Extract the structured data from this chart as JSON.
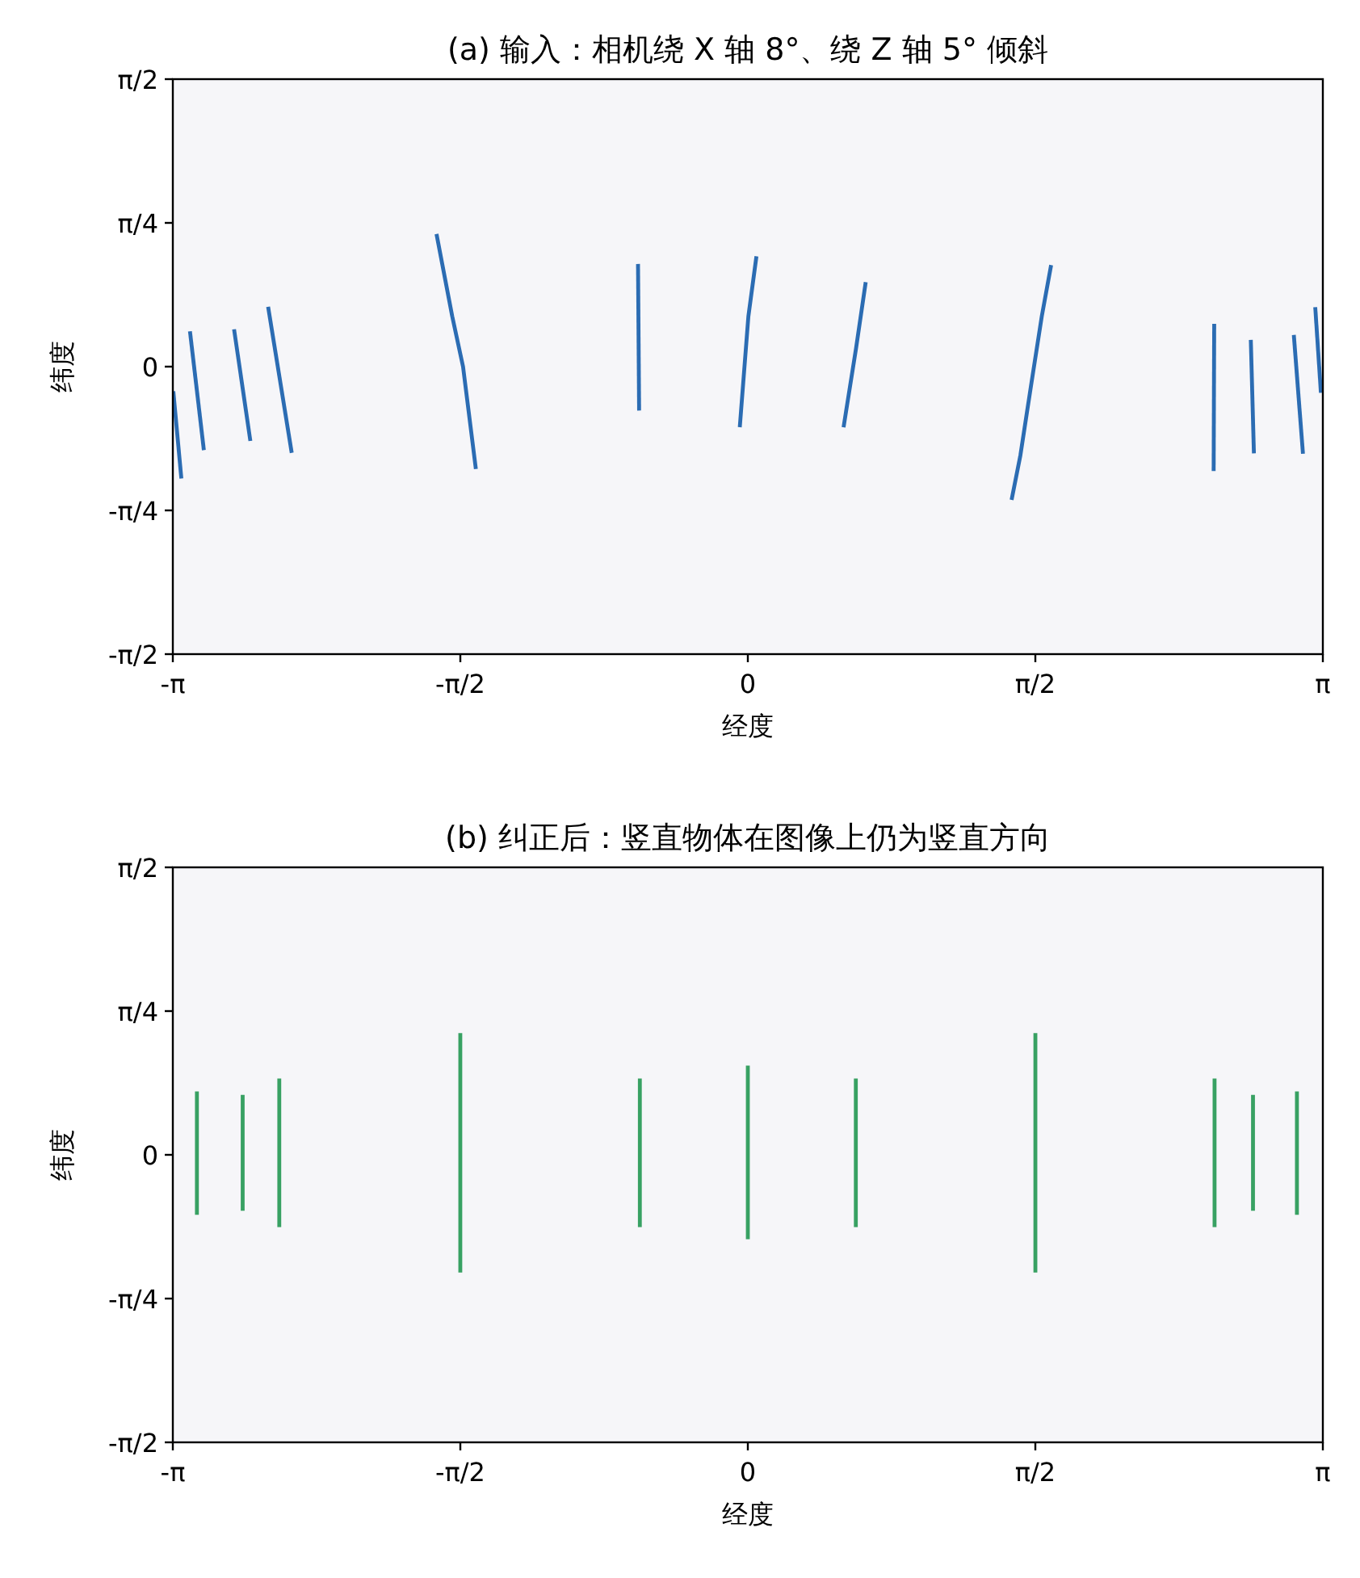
{
  "chart_data": [
    {
      "type": "line",
      "title": "(a) 输入：相机绕 X 轴 8°、绕 Z 轴 5° 倾斜",
      "xlabel": "经度",
      "ylabel": "纬度",
      "xlim": [
        -3.1416,
        3.1416
      ],
      "ylim": [
        -1.5708,
        1.5708
      ],
      "xticks": [
        {
          "value": -3.1416,
          "label": "-π"
        },
        {
          "value": -1.5708,
          "label": "-π/2"
        },
        0,
        {
          "value": 1.5708,
          "label": "π/2"
        },
        {
          "value": 3.1416,
          "label": "π"
        }
      ],
      "yticks": [
        {
          "value": -1.5708,
          "label": "-π/2"
        },
        {
          "value": -0.7854,
          "label": "-π/4"
        },
        0,
        {
          "value": 0.7854,
          "label": "π/4"
        },
        {
          "value": 1.5708,
          "label": "π/2"
        }
      ],
      "series": [
        {
          "color": "#2b6cb3",
          "x": [
            -3.139,
            -3.095
          ],
          "values": [
            -0.134,
            -0.611
          ]
        },
        {
          "color": "#2b6cb3",
          "x": [
            -3.048,
            -2.972
          ],
          "values": [
            0.193,
            -0.456
          ]
        },
        {
          "color": "#2b6cb3",
          "x": [
            -2.807,
            -2.718
          ],
          "values": [
            0.204,
            -0.406
          ]
        },
        {
          "color": "#2b6cb3",
          "x": [
            -2.621,
            -2.492
          ],
          "values": [
            0.327,
            -0.471
          ]
        },
        {
          "color": "#2b6cb3",
          "x": [
            -1.701,
            -1.615,
            -1.556,
            -1.486
          ],
          "values": [
            0.725,
            0.275,
            0,
            -0.559
          ]
        },
        {
          "color": "#2b6cb3",
          "x": [
            -0.6,
            -0.594
          ],
          "values": [
            0.561,
            -0.24
          ]
        },
        {
          "color": "#2b6cb3",
          "x": [
            0.047,
            0.003,
            -0.044
          ],
          "values": [
            0.603,
            0.275,
            -0.331
          ]
        },
        {
          "color": "#2b6cb3",
          "x": [
            0.644,
            0.591,
            0.523
          ],
          "values": [
            0.462,
            0.099,
            -0.331
          ]
        },
        {
          "color": "#2b6cb3",
          "x": [
            1.657,
            1.606,
            1.547,
            1.489,
            1.441
          ],
          "values": [
            0.555,
            0.275,
            -0.105,
            -0.485,
            -0.728
          ]
        },
        {
          "color": "#2b6cb3",
          "x": [
            2.548,
            2.545
          ],
          "values": [
            0.234,
            -0.57
          ]
        },
        {
          "color": "#2b6cb3",
          "x": [
            2.748,
            2.765
          ],
          "values": [
            0.146,
            -0.474
          ]
        },
        {
          "color": "#2b6cb3",
          "x": [
            2.983,
            3.033
          ],
          "values": [
            0.173,
            -0.476
          ]
        },
        {
          "color": "#2b6cb3",
          "x": [
            3.1,
            3.131
          ],
          "values": [
            0.325,
            -0.143
          ]
        }
      ]
    },
    {
      "type": "line",
      "title": "(b) 纠正后：竖直物体在图像上仍为竖直方向",
      "xlabel": "经度",
      "ylabel": "纬度",
      "xlim": [
        -3.1416,
        3.1416
      ],
      "ylim": [
        -1.5708,
        1.5708
      ],
      "xticks": [
        {
          "value": -3.1416,
          "label": "-π"
        },
        {
          "value": -1.5708,
          "label": "-π/2"
        },
        0,
        {
          "value": 1.5708,
          "label": "π/2"
        },
        {
          "value": 3.1416,
          "label": "π"
        }
      ],
      "yticks": [
        {
          "value": -1.5708,
          "label": "-π/2"
        },
        {
          "value": -0.7854,
          "label": "-π/4"
        },
        0,
        {
          "value": 0.7854,
          "label": "π/4"
        },
        {
          "value": 1.5708,
          "label": "π/2"
        }
      ],
      "series": [
        {
          "color": "#38a163",
          "x": [
            -3.01,
            -3.01
          ],
          "values": [
            0.346,
            -0.328
          ]
        },
        {
          "color": "#38a163",
          "x": [
            -2.76,
            -2.76
          ],
          "values": [
            0.328,
            -0.306
          ]
        },
        {
          "color": "#38a163",
          "x": [
            -2.56,
            -2.56
          ],
          "values": [
            0.417,
            -0.395
          ]
        },
        {
          "color": "#38a163",
          "x": [
            -1.571,
            -1.571
          ],
          "values": [
            0.665,
            -0.643
          ]
        },
        {
          "color": "#38a163",
          "x": [
            -0.59,
            -0.59
          ],
          "values": [
            0.417,
            -0.395
          ]
        },
        {
          "color": "#38a163",
          "x": [
            0,
            0
          ],
          "values": [
            0.488,
            -0.461
          ]
        },
        {
          "color": "#38a163",
          "x": [
            0.59,
            0.59
          ],
          "values": [
            0.417,
            -0.395
          ]
        },
        {
          "color": "#38a163",
          "x": [
            1.571,
            1.571
          ],
          "values": [
            0.665,
            -0.643
          ]
        },
        {
          "color": "#38a163",
          "x": [
            2.55,
            2.55
          ],
          "values": [
            0.417,
            -0.395
          ]
        },
        {
          "color": "#38a163",
          "x": [
            2.76,
            2.76
          ],
          "values": [
            0.328,
            -0.306
          ]
        },
        {
          "color": "#38a163",
          "x": [
            3.0,
            3.0
          ],
          "values": [
            0.346,
            -0.328
          ]
        }
      ]
    }
  ]
}
